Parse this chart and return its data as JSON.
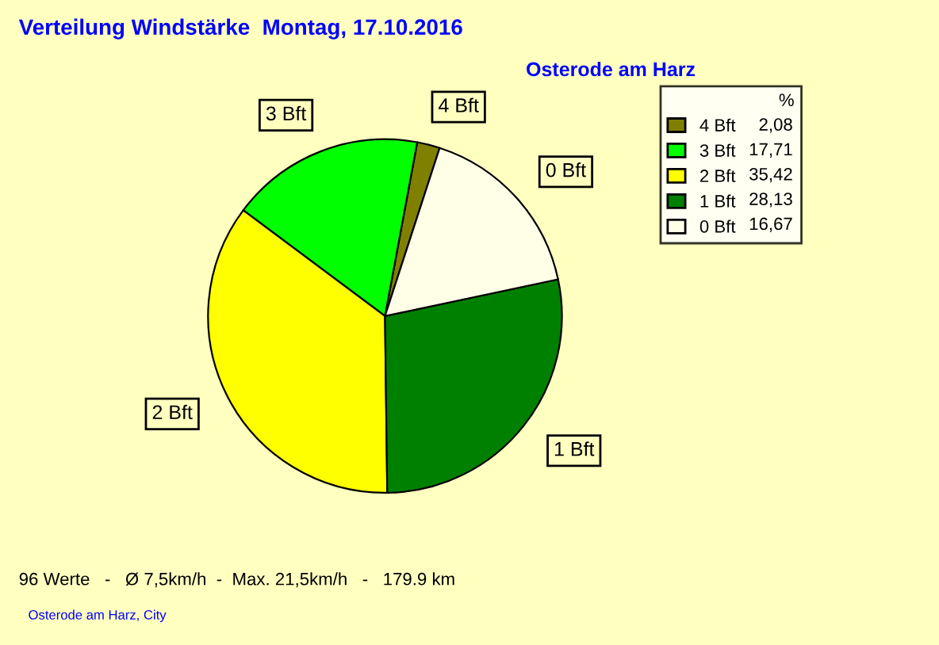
{
  "chart_data": {
    "type": "pie",
    "title": "Verteilung Windstärke  Montag, 17.10.2016",
    "subtitle": "Osterode am Harz",
    "legend_title": "%",
    "legend": "top right",
    "categories": [
      "4 Bft",
      "3 Bft",
      "2 Bft",
      "1 Bft",
      "0 Bft"
    ],
    "values": [
      2.08,
      17.71,
      35.42,
      28.13,
      16.67
    ],
    "value_labels": [
      "2,08",
      "17,71",
      "35,42",
      "28,13",
      "16,67"
    ],
    "colors": [
      "#808000",
      "#00ff00",
      "#ffff00",
      "#008000",
      "#ffffe8"
    ],
    "annotations": [
      "96 Werte   -   Ø 7,5km/h  -  Max. 21,5km/h   -   179.9 km",
      "Osterode am Harz, City"
    ]
  }
}
